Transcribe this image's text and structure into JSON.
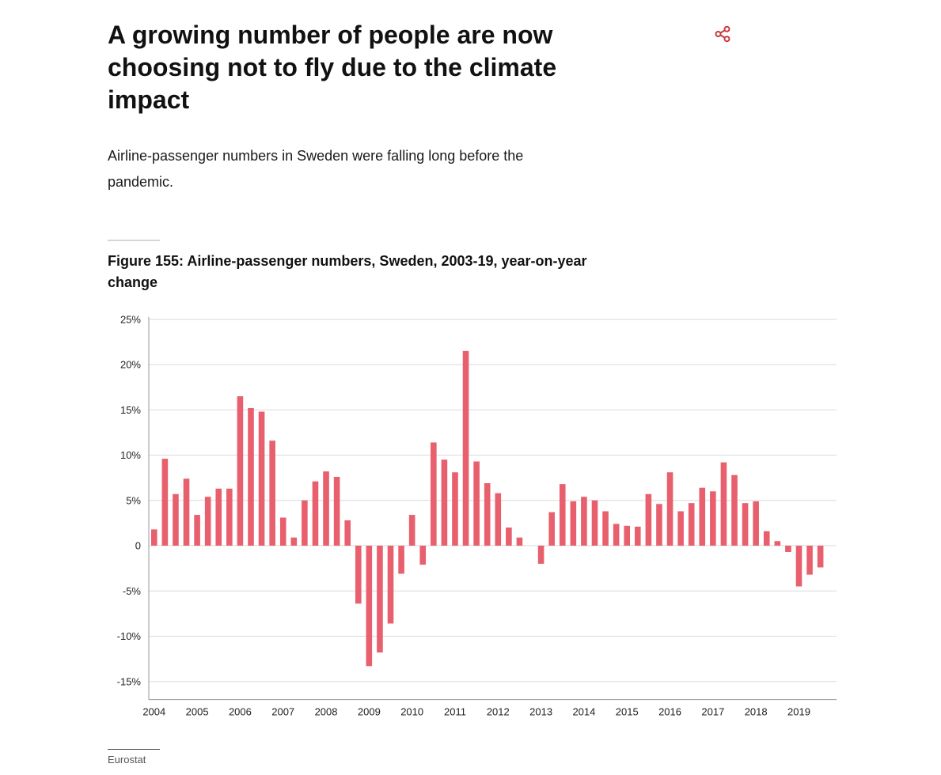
{
  "header": {
    "title": "A growing number of people are now choosing not to fly due to the climate impact",
    "subtitle": "Airline-passenger numbers in Sweden were falling long before the pandemic.",
    "share_icon": "share-icon"
  },
  "colors": {
    "bar": "#e8606d",
    "share": "#c8383f",
    "grid": "#d9d9d9",
    "axis": "#999999"
  },
  "figure": {
    "title": "Figure 155: Airline-passenger numbers, Sweden, 2003-19, year-on-year change"
  },
  "source": "Eurostat",
  "chart_data": {
    "type": "bar",
    "title": "Figure 155: Airline-passenger numbers, Sweden, 2003-19, year-on-year change",
    "xlabel": "",
    "ylabel": "",
    "ylim": [
      -17,
      25
    ],
    "yticks": [
      25,
      20,
      15,
      10,
      5,
      0,
      -5,
      -10,
      -15
    ],
    "ytick_labels": [
      "25%",
      "20%",
      "15%",
      "10%",
      "5%",
      "0",
      "-5%",
      "-10%",
      "-15%"
    ],
    "xtick_labels": [
      "2004",
      "2005",
      "2006",
      "2007",
      "2008",
      "2009",
      "2010",
      "2011",
      "2012",
      "2013",
      "2014",
      "2015",
      "2016",
      "2017",
      "2018",
      "2019"
    ],
    "grid": true,
    "legend": "none",
    "categories": [
      "2004 Q1",
      "2004 Q2",
      "2004 Q3",
      "2004 Q4",
      "2005 Q1",
      "2005 Q2",
      "2005 Q3",
      "2005 Q4",
      "2006 Q1",
      "2006 Q2",
      "2006 Q3",
      "2006 Q4",
      "2007 Q1",
      "2007 Q2",
      "2007 Q3",
      "2007 Q4",
      "2008 Q1",
      "2008 Q2",
      "2008 Q3",
      "2008 Q4",
      "2009 Q1",
      "2009 Q2",
      "2009 Q3",
      "2009 Q4",
      "2010 Q1",
      "2010 Q2",
      "2010 Q3",
      "2010 Q4",
      "2011 Q1",
      "2011 Q2",
      "2011 Q3",
      "2011 Q4",
      "2012 Q1",
      "2012 Q2",
      "2012 Q3",
      "2012 Q4",
      "2013 Q1",
      "2013 Q2",
      "2013 Q3",
      "2013 Q4",
      "2014 Q1",
      "2014 Q2",
      "2014 Q3",
      "2014 Q4",
      "2015 Q1",
      "2015 Q2",
      "2015 Q3",
      "2015 Q4",
      "2016 Q1",
      "2016 Q2",
      "2016 Q3",
      "2016 Q4",
      "2017 Q1",
      "2017 Q2",
      "2017 Q3",
      "2017 Q4",
      "2018 Q1",
      "2018 Q2",
      "2018 Q3",
      "2018 Q4",
      "2019 Q1",
      "2019 Q2",
      "2019 Q3",
      "2019 Q4"
    ],
    "values": [
      1.8,
      9.6,
      5.7,
      7.4,
      3.4,
      5.4,
      6.3,
      6.3,
      16.5,
      15.2,
      14.8,
      11.6,
      3.1,
      0.9,
      5.0,
      7.1,
      8.2,
      7.6,
      2.8,
      -6.4,
      -13.3,
      -11.8,
      -8.6,
      -3.1,
      3.4,
      -2.1,
      11.4,
      9.5,
      8.1,
      21.5,
      9.3,
      6.9,
      5.8,
      2.0,
      0.9,
      0.0,
      -2.0,
      3.7,
      6.8,
      4.9,
      5.4,
      5.0,
      3.8,
      2.4,
      2.2,
      2.1,
      5.7,
      4.6,
      8.1,
      3.8,
      4.7,
      6.4,
      6.0,
      9.2,
      7.8,
      4.7,
      4.9,
      1.6,
      0.5,
      -0.7,
      -4.5,
      -3.2,
      -2.4,
      0.0
    ]
  }
}
